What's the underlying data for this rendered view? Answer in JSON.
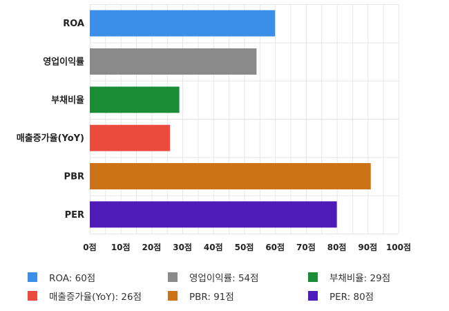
{
  "chart_data": {
    "type": "bar",
    "orientation": "horizontal",
    "categories": [
      "ROA",
      "영업이익률",
      "부채비율",
      "매출증가율(YoY)",
      "PBR",
      "PER"
    ],
    "values": [
      60,
      54,
      29,
      26,
      91,
      80
    ],
    "colors": [
      "#3b8fe8",
      "#8a8a8a",
      "#1a8c35",
      "#ea4b3c",
      "#cc7317",
      "#4e1ab8"
    ],
    "xlim": [
      0,
      100
    ],
    "xticks": [
      0,
      10,
      20,
      30,
      40,
      50,
      60,
      70,
      80,
      90,
      100
    ],
    "tick_labels": [
      "0점",
      "10점",
      "20점",
      "30점",
      "40점",
      "50점",
      "60점",
      "70점",
      "80점",
      "90점",
      "100점"
    ],
    "grid": true,
    "legend_position": "bottom",
    "legend": [
      "ROA: 60점",
      "매출증가율(YoY): 26점",
      "영업이익률: 54점",
      "PBR: 91점",
      "부채비율: 29점",
      "PER: 80점"
    ]
  }
}
